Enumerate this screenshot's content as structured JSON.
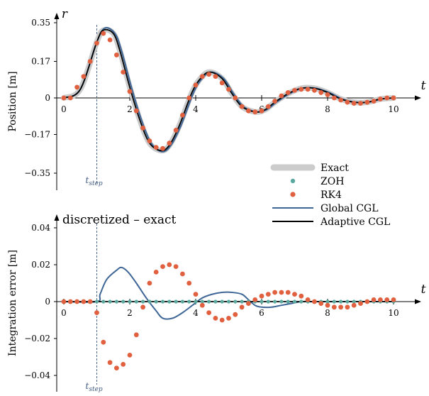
{
  "colors": {
    "exact": "#cccccc",
    "zoh": "#5aa89e",
    "rk4": "#e0603f",
    "global_cgl": "#3e6696",
    "adaptive_cgl": "#000000",
    "axis": "#000000",
    "step_line": "#3e5a80"
  },
  "legend": {
    "placement": "between-panels-right",
    "items": [
      {
        "key": "exact",
        "label": "Exact",
        "style": "thick-line"
      },
      {
        "key": "zoh",
        "label": "ZOH",
        "style": "dot"
      },
      {
        "key": "rk4",
        "label": "RK4",
        "style": "dot"
      },
      {
        "key": "global_cgl",
        "label": "Global CGL",
        "style": "line"
      },
      {
        "key": "adaptive_cgl",
        "label": "Adaptive CGL",
        "style": "line"
      }
    ]
  },
  "chart_data": [
    {
      "type": "line",
      "title": "",
      "ylabel": "Position [m]",
      "axis_var_y": "r",
      "axis_var_x": "t",
      "xlim": [
        -0.2,
        10.8
      ],
      "ylim": [
        -0.42,
        0.39
      ],
      "xticks": [
        0,
        2,
        4,
        6,
        8,
        10
      ],
      "xtick_labels": [
        "0",
        "2",
        "4",
        "6",
        "8",
        "10"
      ],
      "yticks": [
        0.35,
        0.17,
        0,
        -0.17,
        -0.35
      ],
      "ytick_labels": [
        "0.35",
        "0.17",
        "0",
        "−0.17",
        "−0.35"
      ],
      "step_time": 1,
      "step_label": "t",
      "step_label_sub": "step",
      "grid": false,
      "series": [
        {
          "key": "exact",
          "name": "Exact",
          "x": [
            0,
            0.5,
            1.0,
            1.2,
            1.5,
            1.7,
            2.0,
            2.3,
            2.6,
            2.95,
            3.2,
            3.5,
            3.9,
            4.2,
            4.45,
            4.8,
            5.1,
            5.4,
            5.8,
            6.1,
            6.4,
            6.8,
            7.2,
            7.6,
            8.0,
            8.4,
            8.8,
            9.2,
            9.6,
            10.0
          ],
          "y": [
            0,
            0.04,
            0.26,
            0.315,
            0.3,
            0.22,
            0.05,
            -0.1,
            -0.21,
            -0.245,
            -0.22,
            -0.13,
            0.03,
            0.1,
            0.12,
            0.09,
            0.02,
            -0.04,
            -0.065,
            -0.055,
            -0.02,
            0.02,
            0.045,
            0.045,
            0.025,
            -0.005,
            -0.02,
            -0.02,
            -0.005,
            0
          ]
        },
        {
          "key": "global_cgl",
          "name": "Global CGL",
          "x": [
            0,
            0.5,
            1.0,
            1.25,
            1.55,
            1.75,
            2.05,
            2.35,
            2.65,
            2.98,
            3.25,
            3.55,
            3.95,
            4.25,
            4.5,
            4.85,
            5.15,
            5.45,
            5.85,
            6.15,
            6.45,
            6.85,
            7.25,
            7.65,
            8.05,
            8.45,
            8.85,
            9.25,
            9.65,
            10.0
          ],
          "y": [
            0,
            0.04,
            0.26,
            0.325,
            0.3,
            0.22,
            0.05,
            -0.1,
            -0.21,
            -0.25,
            -0.22,
            -0.13,
            0.03,
            0.1,
            0.12,
            0.09,
            0.02,
            -0.04,
            -0.065,
            -0.055,
            -0.02,
            0.02,
            0.045,
            0.045,
            0.025,
            -0.005,
            -0.02,
            -0.02,
            -0.005,
            0
          ]
        },
        {
          "key": "adaptive_cgl",
          "name": "Adaptive CGL",
          "x": [
            0,
            0.5,
            1.0,
            1.2,
            1.5,
            1.7,
            2.0,
            2.3,
            2.6,
            2.95,
            3.2,
            3.5,
            3.9,
            4.2,
            4.45,
            4.8,
            5.1,
            5.4,
            5.8,
            6.1,
            6.4,
            6.8,
            7.2,
            7.6,
            8.0,
            8.4,
            8.8,
            9.2,
            9.6,
            10.0
          ],
          "y": [
            0,
            0.04,
            0.26,
            0.315,
            0.3,
            0.22,
            0.05,
            -0.1,
            -0.21,
            -0.245,
            -0.22,
            -0.13,
            0.03,
            0.1,
            0.12,
            0.09,
            0.02,
            -0.04,
            -0.065,
            -0.055,
            -0.02,
            0.02,
            0.045,
            0.045,
            0.025,
            -0.005,
            -0.02,
            -0.02,
            -0.005,
            0
          ]
        },
        {
          "key": "rk4",
          "name": "RK4",
          "style": "dot",
          "x": [
            0,
            0.2,
            0.4,
            0.6,
            0.8,
            1.0,
            1.2,
            1.4,
            1.6,
            1.8,
            2.0,
            2.2,
            2.4,
            2.6,
            2.8,
            3.0,
            3.2,
            3.4,
            3.6,
            3.8,
            4.0,
            4.2,
            4.4,
            4.6,
            4.8,
            5.0,
            5.2,
            5.4,
            5.6,
            5.8,
            6.0,
            6.2,
            6.4,
            6.6,
            6.8,
            7.0,
            7.2,
            7.4,
            7.6,
            7.8,
            8.0,
            8.2,
            8.4,
            8.6,
            8.8,
            9.0,
            9.2,
            9.4,
            9.6,
            9.8,
            10.0
          ],
          "y": [
            0,
            0.0,
            0.05,
            0.1,
            0.17,
            0.255,
            0.3,
            0.27,
            0.2,
            0.12,
            0.03,
            -0.06,
            -0.14,
            -0.2,
            -0.23,
            -0.235,
            -0.21,
            -0.15,
            -0.08,
            0.0,
            0.06,
            0.1,
            0.11,
            0.1,
            0.07,
            0.04,
            0.0,
            -0.04,
            -0.06,
            -0.065,
            -0.06,
            -0.04,
            -0.015,
            0.01,
            0.025,
            0.035,
            0.04,
            0.04,
            0.035,
            0.025,
            0.015,
            0.0,
            -0.01,
            -0.02,
            -0.025,
            -0.025,
            -0.02,
            -0.015,
            -0.005,
            0.0,
            0.0
          ]
        },
        {
          "key": "zoh",
          "name": "ZOH",
          "style": "dot",
          "hidden_under": "exact",
          "x": [],
          "y": []
        }
      ]
    },
    {
      "type": "line",
      "title": "discretized – exact",
      "ylabel": "Integration error [m]",
      "axis_var_x": "t",
      "xlim": [
        -0.2,
        10.8
      ],
      "ylim": [
        -0.047,
        0.047
      ],
      "xticks": [
        0,
        2,
        4,
        6,
        8,
        10
      ],
      "xtick_labels": [
        "0",
        "2",
        "4",
        "6",
        "8",
        "10"
      ],
      "yticks": [
        0.04,
        0.02,
        0,
        -0.02,
        -0.04
      ],
      "ytick_labels": [
        "0.04",
        "0.02",
        "0",
        "−0.02",
        "−0.04"
      ],
      "step_time": 1,
      "step_label": "t",
      "step_label_sub": "step",
      "grid": false,
      "series": [
        {
          "key": "global_cgl",
          "name": "Global CGL",
          "x": [
            0,
            1.0,
            1.1,
            1.3,
            1.6,
            1.75,
            1.95,
            2.2,
            2.5,
            2.8,
            3.0,
            3.3,
            3.6,
            3.9,
            4.2,
            4.5,
            4.8,
            5.1,
            5.4,
            5.6,
            5.8,
            6.0,
            6.3,
            6.6,
            6.9,
            7.2,
            7.5,
            7.8,
            8.2,
            8.6,
            9.0,
            9.4,
            9.8,
            10.0
          ],
          "y": [
            0,
            0,
            0.004,
            0.012,
            0.017,
            0.0185,
            0.016,
            0.01,
            0.002,
            -0.005,
            -0.009,
            -0.009,
            -0.006,
            -0.002,
            0.002,
            0.004,
            0.005,
            0.005,
            0.004,
            0.001,
            -0.002,
            -0.003,
            -0.003,
            -0.002,
            -0.001,
            0.0,
            0.0,
            0.0,
            0.0,
            0.0,
            0.0,
            0.0,
            0.0,
            0.0
          ]
        },
        {
          "key": "adaptive_cgl",
          "name": "Adaptive CGL",
          "x": [
            0,
            10
          ],
          "y": [
            0,
            0
          ]
        },
        {
          "key": "zoh",
          "name": "ZOH",
          "style": "dot",
          "x": [
            0,
            0.2,
            0.4,
            0.6,
            0.8,
            1.0,
            1.2,
            1.4,
            1.6,
            1.8,
            2.0,
            2.2,
            2.4,
            2.6,
            2.8,
            3.0,
            3.2,
            3.4,
            3.6,
            3.8,
            4.0,
            4.2,
            4.4,
            4.6,
            4.8,
            5.0,
            5.2,
            5.4,
            5.6,
            5.8,
            6.0,
            6.2,
            6.4,
            6.6,
            6.8,
            7.0,
            7.2,
            7.4,
            7.6,
            7.8,
            8.0,
            8.2,
            8.4,
            8.6,
            8.8,
            9.0,
            9.2,
            9.4,
            9.6,
            9.8,
            10.0
          ],
          "y": [
            0,
            0,
            0,
            0,
            0,
            0,
            0,
            0,
            0,
            0,
            0,
            0,
            0,
            0,
            0,
            0,
            0,
            0,
            0,
            0,
            0,
            0,
            0,
            0,
            0,
            0,
            0,
            0,
            0,
            0,
            0,
            0,
            0,
            0,
            0,
            0,
            0,
            0,
            0,
            0,
            0,
            0,
            0,
            0,
            0,
            0,
            0,
            0,
            0,
            0,
            0
          ]
        },
        {
          "key": "rk4",
          "name": "RK4",
          "style": "dot",
          "x": [
            0,
            0.2,
            0.4,
            0.6,
            0.8,
            1.0,
            1.2,
            1.4,
            1.6,
            1.8,
            2.0,
            2.2,
            2.4,
            2.6,
            2.8,
            3.0,
            3.2,
            3.4,
            3.6,
            3.8,
            4.0,
            4.2,
            4.4,
            4.6,
            4.8,
            5.0,
            5.2,
            5.4,
            5.6,
            5.8,
            6.0,
            6.2,
            6.4,
            6.6,
            6.8,
            7.0,
            7.2,
            7.4,
            7.6,
            7.8,
            8.0,
            8.2,
            8.4,
            8.6,
            8.8,
            9.0,
            9.2,
            9.4,
            9.6,
            9.8,
            10.0
          ],
          "y": [
            0,
            0,
            0,
            0,
            0,
            -0.006,
            -0.022,
            -0.033,
            -0.036,
            -0.034,
            -0.029,
            -0.018,
            -0.003,
            0.01,
            0.016,
            0.019,
            0.02,
            0.019,
            0.015,
            0.01,
            0.004,
            -0.002,
            -0.006,
            -0.009,
            -0.01,
            -0.009,
            -0.007,
            -0.003,
            -0.001,
            0.001,
            0.003,
            0.004,
            0.005,
            0.005,
            0.005,
            0.004,
            0.003,
            0.001,
            0.0,
            -0.001,
            -0.002,
            -0.003,
            -0.003,
            -0.003,
            -0.002,
            -0.001,
            0.0,
            0.001,
            0.001,
            0.001,
            0.001
          ]
        }
      ]
    }
  ]
}
